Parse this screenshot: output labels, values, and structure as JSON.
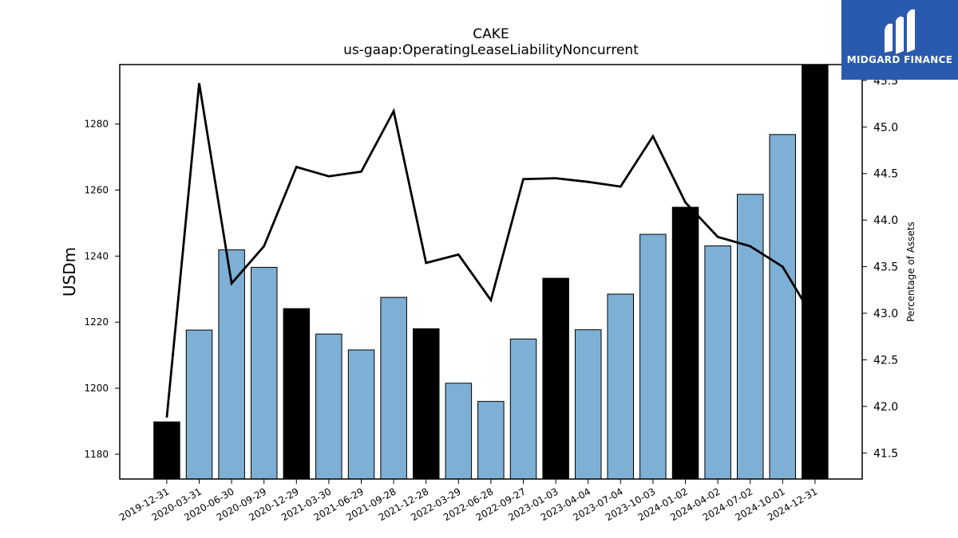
{
  "chart_data": {
    "type": "bar",
    "title": "CAKE",
    "subtitle": "us-gaap:OperatingLeaseLiabilityNoncurrent",
    "ylabel": "USDm",
    "y2label": "Percentage of Assets",
    "ylim": [
      1172.5,
      1298
    ],
    "y2lim": [
      41.22,
      45.67
    ],
    "yticks": [
      1180,
      1200,
      1220,
      1240,
      1260,
      1280
    ],
    "y2ticks": [
      "41.5",
      "42.0",
      "42.5",
      "43.0",
      "43.5",
      "44.0",
      "44.5",
      "45.0",
      "45.5"
    ],
    "categories": [
      "2019-12-31",
      "2020-03-31",
      "2020-06-30",
      "2020-09-29",
      "2020-12-29",
      "2021-03-30",
      "2021-06-29",
      "2021-09-28",
      "2021-12-28",
      "2022-03-29",
      "2022-06-28",
      "2022-09-27",
      "2023-01-03",
      "2023-04-04",
      "2023-07-04",
      "2023-10-03",
      "2024-01-02",
      "2024-04-02",
      "2024-07-02",
      "2024-10-01",
      "2024-12-31"
    ],
    "series": [
      {
        "kind": "bar",
        "values": [
          1189.8,
          1217.6,
          1241.9,
          1236.6,
          1224.1,
          1216.4,
          1211.6,
          1227.5,
          1218.0,
          1201.5,
          1196.0,
          1214.9,
          1233.3,
          1217.7,
          1228.5,
          1246.6,
          1254.8,
          1243.1,
          1258.7,
          1276.8,
          1298.5
        ],
        "highlight": [
          true,
          false,
          false,
          false,
          true,
          false,
          false,
          false,
          true,
          false,
          false,
          false,
          true,
          false,
          false,
          false,
          true,
          false,
          false,
          false,
          true
        ]
      },
      {
        "kind": "line",
        "axis": "right",
        "values": [
          41.88,
          45.47,
          43.32,
          43.72,
          44.57,
          44.47,
          44.52,
          45.17,
          43.54,
          43.63,
          43.14,
          44.44,
          44.45,
          44.41,
          44.36,
          44.9,
          44.19,
          43.82,
          43.72,
          43.5,
          42.92
        ]
      }
    ],
    "colors": {
      "bar": "#7eb0d5",
      "highlight": "#000000",
      "line": "#000000"
    }
  },
  "brand": {
    "name": "MIDGARD FINANCE",
    "color": "#2a5aae"
  }
}
